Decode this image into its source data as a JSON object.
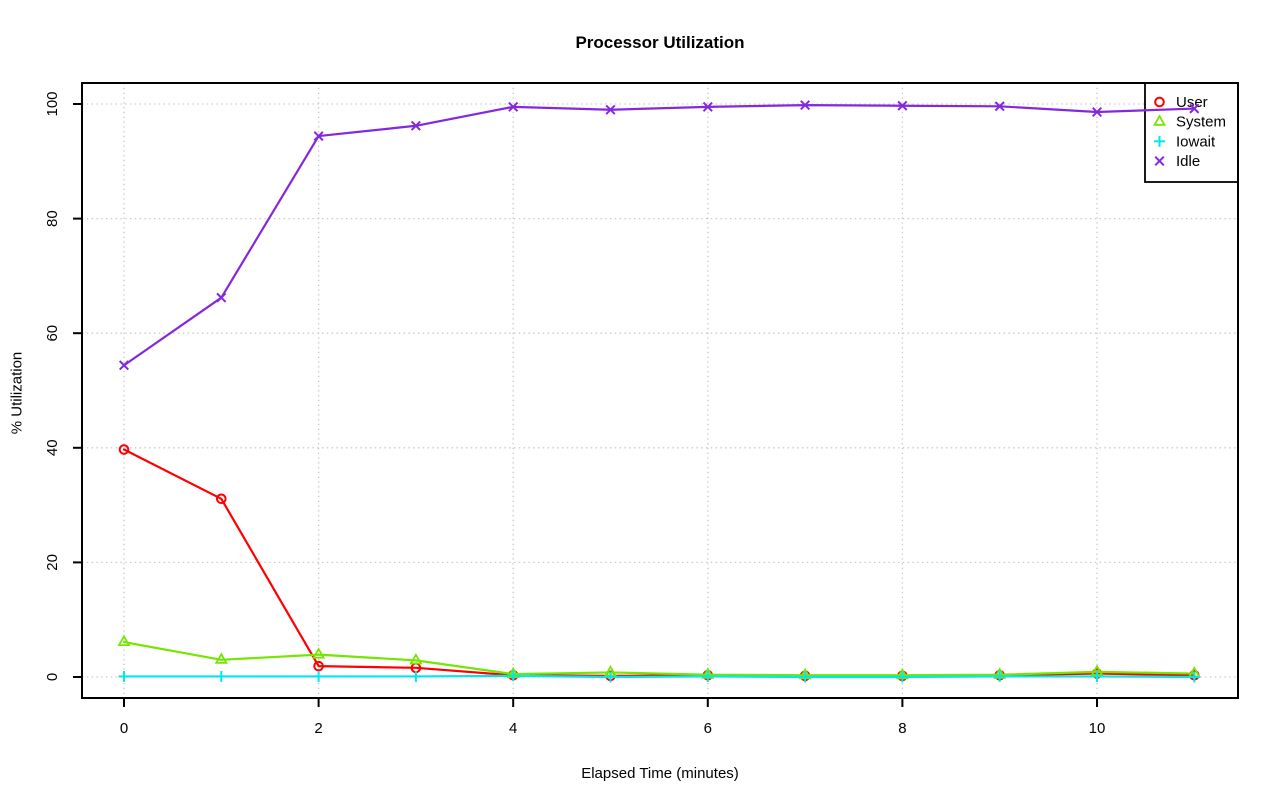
{
  "chart_data": {
    "type": "line",
    "title": "Processor Utilization",
    "xlabel": "Elapsed Time (minutes)",
    "ylabel": "% Utilization",
    "x": [
      0,
      1,
      2,
      3,
      4,
      5,
      6,
      7,
      8,
      9,
      10,
      11
    ],
    "xticks": [
      0,
      2,
      4,
      6,
      8,
      10
    ],
    "yticks": [
      0,
      20,
      40,
      60,
      80,
      100
    ],
    "xlim": [
      -0.43,
      11.45
    ],
    "ylim": [
      -3.6,
      103.7
    ],
    "grid": "dotted-gray-at-major-ticks",
    "legend_position": "top-right",
    "axis_color": "#000000",
    "grid_color": "#c9c9c9",
    "background_color": "#ffffff",
    "series": [
      {
        "name": "User",
        "color": "#ff0000",
        "marker": "circle",
        "values": [
          39.7,
          31.1,
          1.9,
          1.6,
          0.3,
          0.2,
          0.3,
          0.2,
          0.2,
          0.3,
          0.6,
          0.3
        ]
      },
      {
        "name": "System",
        "color": "#74e600",
        "marker": "triangle",
        "values": [
          6.1,
          3.0,
          3.9,
          2.9,
          0.5,
          0.8,
          0.4,
          0.3,
          0.3,
          0.4,
          0.9,
          0.6
        ]
      },
      {
        "name": "Iowait",
        "color": "#00e8ee",
        "marker": "plus",
        "values": [
          0.1,
          0.1,
          0.1,
          0.1,
          0.2,
          0.0,
          0.1,
          0.0,
          0.0,
          0.1,
          0.1,
          0.0
        ]
      },
      {
        "name": "Idle",
        "color": "#8428e0",
        "marker": "x",
        "values": [
          54.4,
          66.2,
          94.4,
          96.2,
          99.5,
          99.0,
          99.5,
          99.8,
          99.7,
          99.6,
          98.6,
          99.2
        ]
      }
    ]
  }
}
